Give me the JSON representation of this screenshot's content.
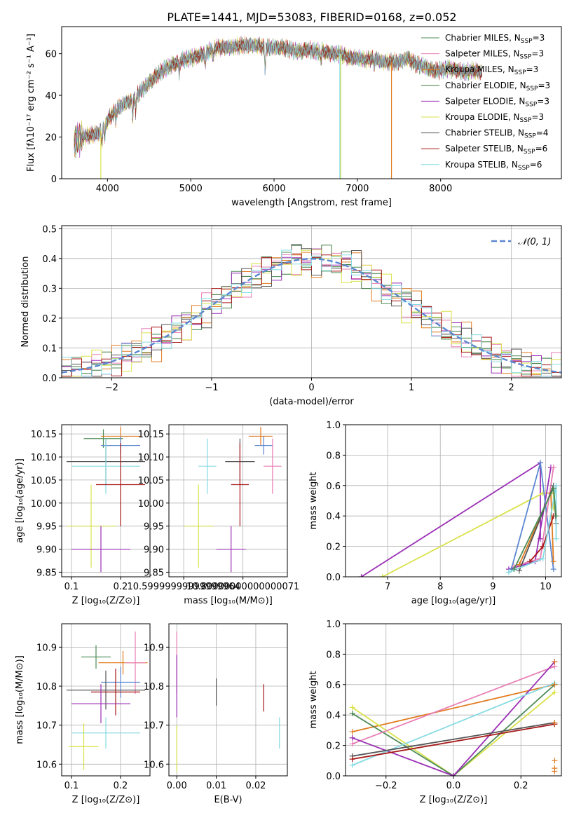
{
  "figure": {
    "title": "PLATE=1441, MJD=53083, FIBERID=0168, z=0.052"
  },
  "colors": {
    "chabrier_miles": "#4d8c57",
    "salpeter_miles": "#e87db4",
    "kroupa_miles": "#e07b1f",
    "chabrier_elodie": "#3f7a3f",
    "salpeter_elodie": "#9b2fb5",
    "kroupa_elodie": "#d9e24a",
    "chabrier_stelib": "#555555",
    "salpeter_stelib": "#a81818",
    "kroupa_stelib": "#86dbe3",
    "extra_blue": "#5b87d1",
    "normal_curve": "#5b87d1",
    "grid": "#b0b0b0"
  },
  "chart_data": [
    {
      "type": "line",
      "panel": "spectrum",
      "xlabel": "wavelength [Angstrom, rest frame]",
      "ylabel": "Flux [fλ10⁻¹⁷ erg cm⁻² s⁻¹ A⁻¹]",
      "xlim": [
        3450,
        9450
      ],
      "ylim": [
        0,
        73
      ],
      "xticks": [
        4000,
        5000,
        6000,
        7000,
        8000
      ],
      "yticks": [
        0,
        20,
        40,
        60
      ],
      "grid": false,
      "legend_position": "top-right",
      "legend": [
        {
          "label": "Chabrier MILES, N",
          "sub": "SSP",
          "val": "=3",
          "color": "#4d8c57"
        },
        {
          "label": "Salpeter MILES, N",
          "sub": "SSP",
          "val": "=3",
          "color": "#e87db4"
        },
        {
          "label": "Kroupa MILES, N",
          "sub": "SSP",
          "val": "=3",
          "color": "#e07b1f"
        },
        {
          "label": "Chabrier ELODIE, N",
          "sub": "SSP",
          "val": "=3",
          "color": "#3f7a3f"
        },
        {
          "label": "Salpeter ELODIE, N",
          "sub": "SSP",
          "val": "=3",
          "color": "#9b2fb5"
        },
        {
          "label": "Kroupa ELODIE, N",
          "sub": "SSP",
          "val": "=3",
          "color": "#d9e24a"
        },
        {
          "label": "Chabrier STELIB, N",
          "sub": "SSP",
          "val": "=4",
          "color": "#555555"
        },
        {
          "label": "Salpeter STELIB, N",
          "sub": "SSP",
          "val": "=6",
          "color": "#a81818"
        },
        {
          "label": "Kroupa STELIB, N",
          "sub": "SSP",
          "val": "=6",
          "color": "#86dbe3"
        }
      ],
      "continuum": [
        [
          3600,
          18
        ],
        [
          3700,
          20
        ],
        [
          3800,
          21
        ],
        [
          3900,
          22
        ],
        [
          4000,
          28
        ],
        [
          4100,
          33
        ],
        [
          4200,
          36
        ],
        [
          4300,
          38
        ],
        [
          4400,
          42
        ],
        [
          4500,
          46
        ],
        [
          4600,
          50
        ],
        [
          4700,
          53
        ],
        [
          4800,
          55
        ],
        [
          4900,
          57
        ],
        [
          5000,
          58
        ],
        [
          5100,
          59
        ],
        [
          5200,
          61
        ],
        [
          5300,
          63
        ],
        [
          5400,
          63
        ],
        [
          5500,
          63
        ],
        [
          5600,
          64
        ],
        [
          5700,
          64
        ],
        [
          5800,
          64
        ],
        [
          5900,
          63
        ],
        [
          6000,
          63
        ],
        [
          6100,
          63
        ],
        [
          6200,
          62
        ],
        [
          6300,
          61
        ],
        [
          6400,
          62
        ],
        [
          6500,
          61
        ],
        [
          6600,
          61
        ],
        [
          6700,
          60
        ],
        [
          6800,
          60
        ],
        [
          6900,
          58
        ],
        [
          7000,
          58
        ],
        [
          7100,
          57
        ],
        [
          7200,
          58
        ],
        [
          7300,
          56
        ],
        [
          7400,
          56
        ],
        [
          7500,
          56
        ],
        [
          7600,
          58
        ],
        [
          7700,
          55
        ],
        [
          7800,
          54
        ],
        [
          7900,
          52
        ],
        [
          8000,
          52
        ],
        [
          8100,
          53
        ],
        [
          8200,
          52
        ],
        [
          8300,
          51
        ],
        [
          8400,
          52
        ],
        [
          8500,
          51
        ]
      ],
      "dips": [
        [
          3933,
          8
        ],
        [
          3968,
          8
        ],
        [
          4102,
          6
        ],
        [
          4304,
          10
        ],
        [
          4340,
          8
        ],
        [
          4861,
          6
        ],
        [
          5175,
          6
        ],
        [
          5270,
          5
        ],
        [
          5892,
          12
        ],
        [
          6563,
          5
        ],
        [
          7200,
          4
        ]
      ],
      "spikes": [
        [
          3920,
          "#d9e24a",
          0
        ],
        [
          6790,
          "#86dbe3",
          0
        ],
        [
          6800,
          "#d9e24a",
          0
        ],
        [
          7410,
          "#e07b1f",
          0
        ]
      ]
    },
    {
      "type": "line",
      "panel": "residuals",
      "xlabel": "(data-model)/error",
      "ylabel": "Normed distribution",
      "xlim": [
        -2.5,
        2.5
      ],
      "ylim": [
        0,
        0.51
      ],
      "xticks": [
        -2,
        -1,
        0,
        1,
        2
      ],
      "yticks": [
        0.0,
        0.1,
        0.2,
        0.3,
        0.4,
        0.5
      ],
      "grid": true,
      "legend_position": "top-right",
      "legend": [
        {
          "label": "𝒩(0, 1)",
          "color": "#5b87d1"
        }
      ],
      "bin_width": 0.1,
      "bin_start": -2.5,
      "series_offsets": [
        0.02,
        -0.025,
        0.035,
        -0.01,
        0.015,
        -0.03,
        0.03,
        -0.015,
        0.008
      ],
      "series_colors": [
        "#4d8c57",
        "#e87db4",
        "#e07b1f",
        "#3f7a3f",
        "#9b2fb5",
        "#d9e24a",
        "#555555",
        "#a81818",
        "#86dbe3"
      ]
    },
    {
      "type": "scatter",
      "panel": "age-vs-Z",
      "xlabel": "Z [log₁₀(Z/Z⊙)]",
      "ylabel": "age  [log₁₀(age/yr)]",
      "xlim": [
        0.08,
        0.26
      ],
      "ylim": [
        9.84,
        10.17
      ],
      "xticks": [
        0.1,
        0.2
      ],
      "yticks": [
        9.85,
        9.9,
        9.95,
        10.0,
        10.05,
        10.1,
        10.15
      ],
      "grid": true,
      "points": [
        {
          "x": 0.165,
          "y": 10.14,
          "xerr": 0.04,
          "yerr": 0.02,
          "color": "#4d8c57"
        },
        {
          "x": 0.2,
          "y": 10.145,
          "xerr": 0.04,
          "yerr": 0.02,
          "color": "#e07b1f"
        },
        {
          "x": 0.2,
          "y": 10.125,
          "xerr": 0.04,
          "yerr": 0.02,
          "color": "#5b87d1"
        },
        {
          "x": 0.17,
          "y": 10.09,
          "xerr": 0.08,
          "yerr": 0.05,
          "color": "#555555"
        },
        {
          "x": 0.17,
          "y": 10.08,
          "xerr": 0.07,
          "yerr": 0.06,
          "color": "#86dbe3"
        },
        {
          "x": 0.2,
          "y": 10.04,
          "xerr": 0.05,
          "yerr": 0.09,
          "color": "#a81818"
        },
        {
          "x": 0.14,
          "y": 9.95,
          "xerr": 0.05,
          "yerr": 0.09,
          "color": "#d9e24a"
        },
        {
          "x": 0.16,
          "y": 9.9,
          "xerr": 0.06,
          "yerr": 0.05,
          "color": "#9b2fb5"
        }
      ]
    },
    {
      "type": "scatter",
      "panel": "age-vs-mass",
      "xlabel": "mass [log₁₀(M/M⊙)]",
      "ylabel": "",
      "xlim": [
        10.55,
        10.95
      ],
      "ylim": [
        9.84,
        10.17
      ],
      "xticks": [
        10.6,
        10.8
      ],
      "yticks": [
        9.85,
        9.9,
        9.95,
        10.0,
        10.05,
        10.1,
        10.15
      ],
      "grid": true,
      "points": [
        {
          "x": 10.86,
          "y": 10.145,
          "xerr": 0.04,
          "yerr": 0.02,
          "color": "#e07b1f"
        },
        {
          "x": 10.87,
          "y": 10.125,
          "xerr": 0.03,
          "yerr": 0.02,
          "color": "#5b87d1"
        },
        {
          "x": 10.79,
          "y": 10.09,
          "xerr": 0.05,
          "yerr": 0.05,
          "color": "#555555"
        },
        {
          "x": 10.9,
          "y": 10.08,
          "xerr": 0.03,
          "yerr": 0.06,
          "color": "#e87db4"
        },
        {
          "x": 10.68,
          "y": 10.08,
          "xerr": 0.03,
          "yerr": 0.06,
          "color": "#86dbe3"
        },
        {
          "x": 10.79,
          "y": 10.04,
          "xerr": 0.03,
          "yerr": 0.09,
          "color": "#a81818"
        },
        {
          "x": 10.65,
          "y": 9.95,
          "xerr": 0.05,
          "yerr": 0.09,
          "color": "#d9e24a"
        },
        {
          "x": 10.76,
          "y": 9.9,
          "xerr": 0.05,
          "yerr": 0.05,
          "color": "#9b2fb5"
        }
      ]
    },
    {
      "type": "line",
      "panel": "weight-vs-age",
      "xlabel": "age  [log₁₀(age/yr)]",
      "ylabel": "mass weight",
      "xlim": [
        6.2,
        10.3
      ],
      "ylim": [
        0,
        1.0
      ],
      "xticks": [
        7,
        8,
        9,
        10
      ],
      "yticks": [
        0.0,
        0.2,
        0.4,
        0.6,
        0.8,
        1.0
      ],
      "grid": true,
      "series": [
        {
          "color": "#9b2fb5",
          "points": [
            [
              6.5,
              0.0
            ],
            [
              9.9,
              0.75
            ],
            [
              9.9,
              0.25
            ]
          ]
        },
        {
          "color": "#d9e24a",
          "points": [
            [
              6.9,
              0.0
            ],
            [
              9.95,
              0.55
            ],
            [
              10.15,
              0.55
            ],
            [
              10.15,
              0.45
            ]
          ]
        },
        {
          "color": "#9b2fb5",
          "points": [
            [
              9.3,
              0.05
            ],
            [
              9.8,
              0.1
            ],
            [
              10.1,
              0.72
            ]
          ]
        },
        {
          "color": "#5b87d1",
          "points": [
            [
              9.35,
              0.05
            ],
            [
              9.9,
              0.75
            ],
            [
              10.15,
              0.05
            ]
          ]
        },
        {
          "color": "#e87db4",
          "points": [
            [
              9.4,
              0.07
            ],
            [
              9.9,
              0.12
            ],
            [
              10.15,
              0.72
            ]
          ]
        },
        {
          "color": "#e07b1f",
          "points": [
            [
              9.5,
              0.08
            ],
            [
              10.1,
              0.55
            ],
            [
              10.15,
              0.1
            ]
          ]
        },
        {
          "color": "#555555",
          "points": [
            [
              9.5,
              0.04
            ],
            [
              10.15,
              0.6
            ],
            [
              10.2,
              0.35
            ]
          ]
        },
        {
          "color": "#a81818",
          "points": [
            [
              9.7,
              0.1
            ],
            [
              9.95,
              0.2
            ],
            [
              10.15,
              0.4
            ]
          ]
        },
        {
          "color": "#86dbe3",
          "points": [
            [
              9.3,
              0.03
            ],
            [
              9.95,
              0.12
            ],
            [
              10.2,
              0.6
            ],
            [
              10.2,
              0.25
            ]
          ]
        },
        {
          "color": "#4d8c57",
          "points": [
            [
              9.4,
              0.05
            ],
            [
              10.15,
              0.58
            ],
            [
              10.2,
              0.4
            ]
          ]
        }
      ]
    },
    {
      "type": "scatter",
      "panel": "mass-vs-Z",
      "xlabel": "Z [log₁₀(Z/Z⊙)]",
      "ylabel": "mass [log₁₀(M/M⊙)]",
      "xlim": [
        0.08,
        0.26
      ],
      "ylim": [
        10.57,
        10.96
      ],
      "xticks": [
        0.1,
        0.2
      ],
      "yticks": [
        10.6,
        10.7,
        10.8,
        10.9
      ],
      "grid": true,
      "points": [
        {
          "x": 0.15,
          "y": 10.875,
          "xerr": 0.03,
          "yerr": 0.03,
          "color": "#4d8c57"
        },
        {
          "x": 0.205,
          "y": 10.86,
          "xerr": 0.05,
          "yerr": 0.03,
          "color": "#e07b1f"
        },
        {
          "x": 0.23,
          "y": 10.86,
          "xerr": 0.02,
          "yerr": 0.08,
          "color": "#e87db4"
        },
        {
          "x": 0.2,
          "y": 10.81,
          "xerr": 0.04,
          "yerr": 0.04,
          "color": "#5b87d1"
        },
        {
          "x": 0.17,
          "y": 10.79,
          "xerr": 0.08,
          "yerr": 0.05,
          "color": "#555555"
        },
        {
          "x": 0.19,
          "y": 10.785,
          "xerr": 0.05,
          "yerr": 0.06,
          "color": "#a81818"
        },
        {
          "x": 0.16,
          "y": 10.755,
          "xerr": 0.06,
          "yerr": 0.05,
          "color": "#9b2fb5"
        },
        {
          "x": 0.17,
          "y": 10.68,
          "xerr": 0.07,
          "yerr": 0.04,
          "color": "#86dbe3"
        },
        {
          "x": 0.125,
          "y": 10.645,
          "xerr": 0.03,
          "yerr": 0.06,
          "color": "#d9e24a"
        }
      ]
    },
    {
      "type": "scatter",
      "panel": "mass-vs-EBV",
      "xlabel": "E(B-V)",
      "ylabel": "",
      "xlim": [
        -0.002,
        0.028
      ],
      "ylim": [
        10.57,
        10.96
      ],
      "xticks": [
        0.0,
        0.01,
        0.02
      ],
      "yticks": [
        10.6,
        10.7,
        10.8,
        10.9
      ],
      "grid": true,
      "points": [
        {
          "x": 0.0,
          "y": 10.86,
          "yerr": 0.08,
          "color": "#e87db4"
        },
        {
          "x": 0.0,
          "y": 10.8,
          "yerr": 0.08,
          "color": "#9b2fb5"
        },
        {
          "x": 0.0,
          "y": 10.64,
          "yerr": 0.06,
          "color": "#d9e24a"
        },
        {
          "x": 0.01,
          "y": 10.785,
          "yerr": 0.035,
          "color": "#555555"
        },
        {
          "x": 0.022,
          "y": 10.77,
          "yerr": 0.035,
          "color": "#a81818"
        },
        {
          "x": 0.026,
          "y": 10.68,
          "yerr": 0.04,
          "color": "#86dbe3"
        }
      ]
    },
    {
      "type": "line",
      "panel": "weight-vs-Z",
      "xlabel": "Z [log₁₀(Z/Z⊙)]",
      "ylabel": "mass weight",
      "xlim": [
        -0.32,
        0.32
      ],
      "ylim": [
        0,
        1.0
      ],
      "xticks": [
        -0.2,
        0.0,
        0.2
      ],
      "yticks": [
        0.0,
        0.2,
        0.4,
        0.6,
        0.8,
        1.0
      ],
      "grid": true,
      "series": [
        {
          "color": "#e07b1f",
          "points": [
            [
              -0.3,
              0.29
            ],
            [
              0.3,
              0.6
            ]
          ]
        },
        {
          "color": "#d9e24a",
          "points": [
            [
              -0.3,
              0.45
            ],
            [
              0.0,
              0.0
            ],
            [
              0.3,
              0.55
            ]
          ]
        },
        {
          "color": "#4d8c57",
          "points": [
            [
              -0.3,
              0.41
            ],
            [
              0.0,
              0.0
            ],
            [
              0.3,
              0.6
            ]
          ]
        },
        {
          "color": "#e87db4",
          "points": [
            [
              -0.3,
              0.21
            ],
            [
              0.3,
              0.72
            ]
          ]
        },
        {
          "color": "#9b2fb5",
          "points": [
            [
              -0.3,
              0.25
            ],
            [
              0.0,
              0.0
            ],
            [
              0.3,
              0.75
            ]
          ]
        },
        {
          "color": "#86dbe3",
          "points": [
            [
              -0.3,
              0.07
            ],
            [
              0.3,
              0.61
            ]
          ]
        },
        {
          "color": "#555555",
          "points": [
            [
              -0.3,
              0.13
            ],
            [
              0.3,
              0.35
            ]
          ]
        },
        {
          "color": "#a81818",
          "points": [
            [
              -0.3,
              0.11
            ],
            [
              0.3,
              0.34
            ]
          ]
        }
      ],
      "edge_markers": [
        [
          0.3,
          0.1
        ],
        [
          0.3,
          0.05
        ],
        [
          0.3,
          0.03
        ],
        [
          0.3,
          0.35
        ],
        [
          0.3,
          0.6
        ],
        [
          0.3,
          0.75
        ]
      ]
    }
  ]
}
